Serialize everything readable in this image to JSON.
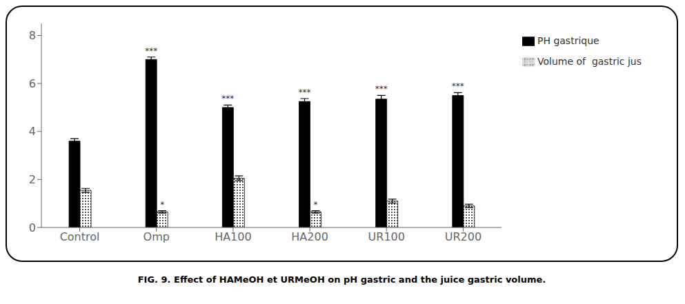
{
  "chart_data": {
    "type": "bar",
    "caption": "FIG. 9. Effect of HAMeOH et URMeOH on pH gastric and the juice gastric volume.",
    "categories": [
      "Control",
      "Omp",
      "HA100",
      "HA200",
      "UR100",
      "UR200"
    ],
    "series": [
      {
        "name": "PH gastrique",
        "color": "#000000",
        "values": [
          3.6,
          7.0,
          5.0,
          5.25,
          5.35,
          5.5
        ],
        "errors": [
          0.1,
          0.1,
          0.1,
          0.12,
          0.15,
          0.12
        ],
        "annotations": [
          null,
          "***",
          "***",
          "***",
          "***",
          "***"
        ]
      },
      {
        "name": "Volume of  gastric jus",
        "color": "#ffffff",
        "values": [
          1.55,
          0.65,
          2.05,
          0.65,
          1.1,
          0.9
        ],
        "errors": [
          0.08,
          0.05,
          0.1,
          0.05,
          0.08,
          0.07
        ],
        "annotations": [
          null,
          "*",
          null,
          "*",
          null,
          null
        ]
      }
    ],
    "ylim": [
      0,
      8.5
    ],
    "yticks": [
      0,
      2,
      4,
      6,
      8
    ],
    "grid": false,
    "legend": "right"
  }
}
